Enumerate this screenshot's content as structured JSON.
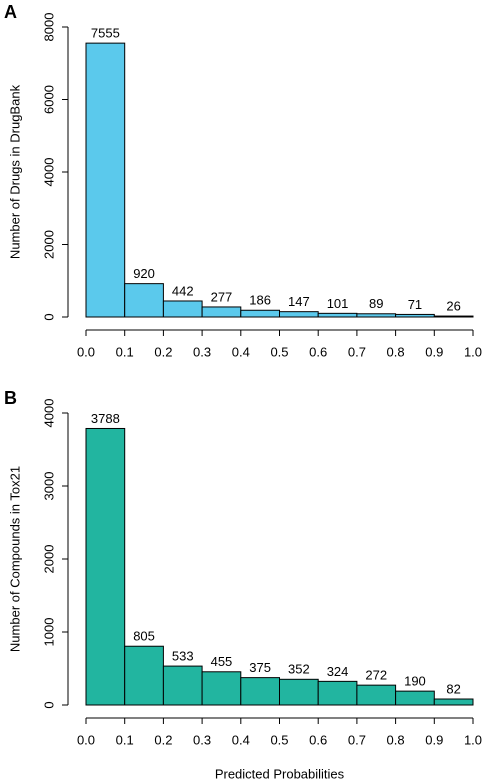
{
  "chart_data": [
    {
      "type": "histogram",
      "label": "A",
      "ylabel": "Number of Drugs in DrugBank",
      "bins": [
        0,
        0.1,
        0.2,
        0.3,
        0.4,
        0.5,
        0.6,
        0.7,
        0.8,
        0.9,
        1.0
      ],
      "values": [
        7555,
        920,
        442,
        277,
        186,
        147,
        101,
        89,
        71,
        26
      ],
      "color": "#5bc9ec",
      "xlim": [
        0,
        1
      ],
      "xticks": [
        {
          "value": 0,
          "label": "0.0"
        },
        {
          "value": 0.1,
          "label": "0.1"
        },
        {
          "value": 0.2,
          "label": "0.2"
        },
        {
          "value": 0.3,
          "label": "0.3"
        },
        {
          "value": 0.4,
          "label": "0.4"
        },
        {
          "value": 0.5,
          "label": "0.5"
        },
        {
          "value": 0.6,
          "label": "0.6"
        },
        {
          "value": 0.7,
          "label": "0.7"
        },
        {
          "value": 0.8,
          "label": "0.8"
        },
        {
          "value": 0.9,
          "label": "0.9"
        },
        {
          "value": 1,
          "label": "1.0"
        }
      ],
      "ylim": [
        0,
        8000
      ],
      "yticks": [
        0,
        2000,
        4000,
        6000,
        8000
      ]
    },
    {
      "type": "histogram",
      "label": "B",
      "ylabel": "Number of Compounds in Tox21",
      "xlabel": "Predicted Probabilities",
      "bins": [
        0,
        0.1,
        0.2,
        0.3,
        0.4,
        0.5,
        0.6,
        0.7,
        0.8,
        0.9,
        1.0
      ],
      "values": [
        3788,
        805,
        533,
        455,
        375,
        352,
        324,
        272,
        190,
        82
      ],
      "color": "#22b5a0",
      "xlim": [
        0,
        1
      ],
      "xticks": [
        {
          "value": 0,
          "label": "0.0"
        },
        {
          "value": 0.1,
          "label": "0.1"
        },
        {
          "value": 0.2,
          "label": "0.2"
        },
        {
          "value": 0.3,
          "label": "0.3"
        },
        {
          "value": 0.4,
          "label": "0.4"
        },
        {
          "value": 0.5,
          "label": "0.5"
        },
        {
          "value": 0.6,
          "label": "0.6"
        },
        {
          "value": 0.7,
          "label": "0.7"
        },
        {
          "value": 0.8,
          "label": "0.8"
        },
        {
          "value": 0.9,
          "label": "0.9"
        },
        {
          "value": 1,
          "label": "1.0"
        }
      ],
      "ylim": [
        0,
        4000
      ],
      "yticks": [
        0,
        1000,
        2000,
        3000,
        4000
      ]
    }
  ]
}
